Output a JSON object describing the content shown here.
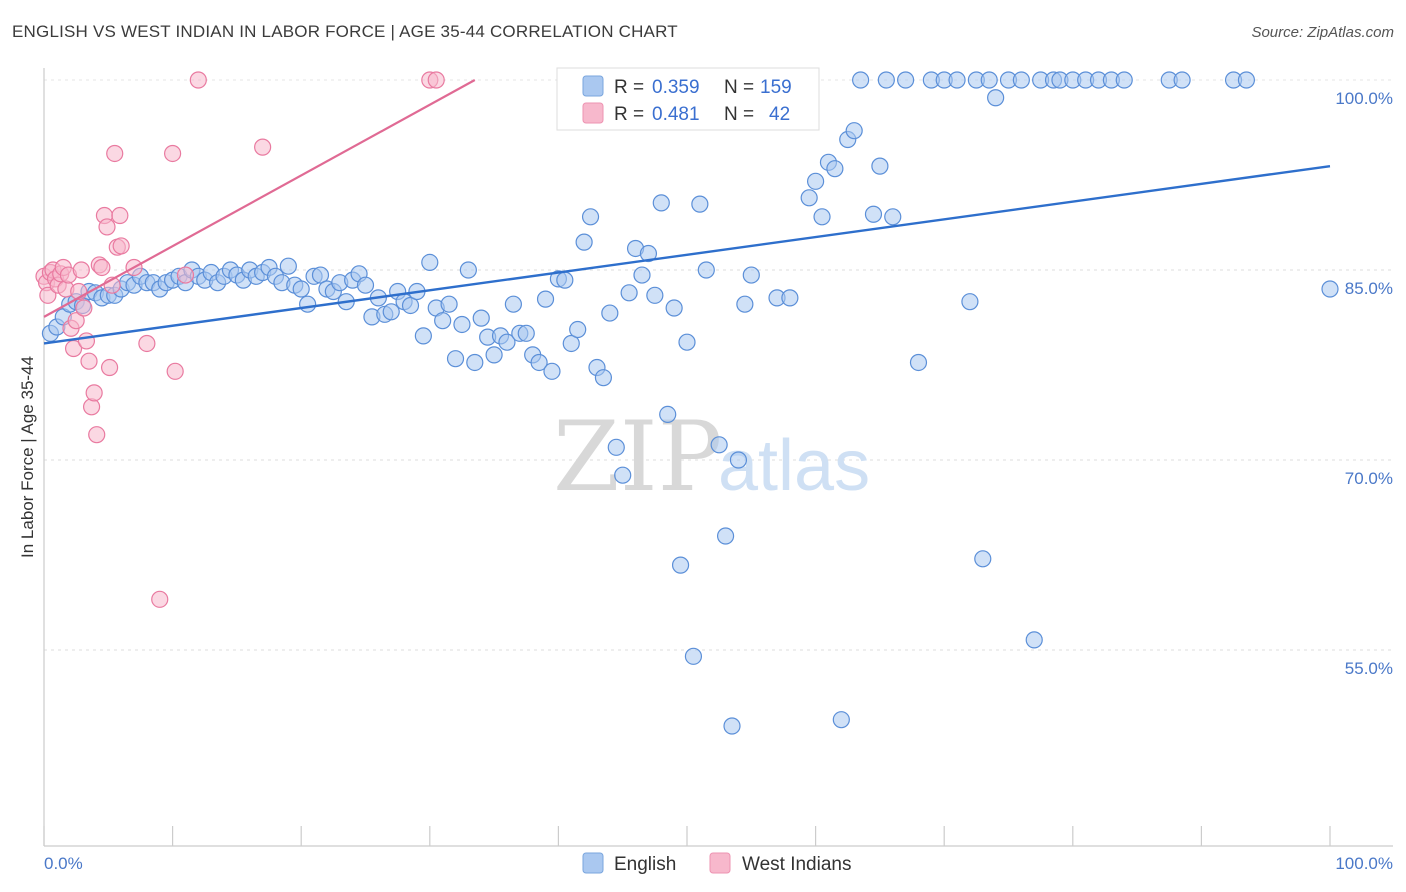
{
  "header": {
    "title": "ENGLISH VS WEST INDIAN IN LABOR FORCE | AGE 35-44 CORRELATION CHART",
    "source": "Source: ZipAtlas.com"
  },
  "watermark": {
    "zip": "ZIP",
    "atlas": "atlas"
  },
  "legend": {
    "rows": [
      {
        "r_label": "R =",
        "r_value": "0.359",
        "n_label": "N =",
        "n_value": "159",
        "color": "#aac8f0"
      },
      {
        "r_label": "R =",
        "r_value": "0.481",
        "n_label": "N =",
        "n_value": "42",
        "color": "#f7b8cc"
      }
    ]
  },
  "bottom_legend": [
    {
      "label": "English",
      "color": "#aac8f0"
    },
    {
      "label": "West Indians",
      "color": "#f7b8cc"
    }
  ],
  "chart_data": {
    "type": "scatter",
    "title": "ENGLISH VS WEST INDIAN IN LABOR FORCE | AGE 35-44 CORRELATION CHART",
    "xlabel": "",
    "ylabel": "In Labor Force | Age 35-44",
    "xlim": [
      0,
      100
    ],
    "ylim": [
      40,
      101.5
    ],
    "x_tick_labels": [
      "0.0%",
      "100.0%"
    ],
    "y_ticks": [
      55,
      70,
      85,
      100
    ],
    "y_tick_labels": [
      "55.0%",
      "70.0%",
      "85.0%",
      "100.0%"
    ],
    "grid": true,
    "legend_position": "top-center",
    "colors": {
      "english": "#5b8fd8",
      "english_fill": "#aac8f0",
      "west_indians": "#e97aa0",
      "west_indians_fill": "#f7b8cc",
      "english_line": "#2e6fcc",
      "west_indians_line": "#e06a94"
    },
    "series": [
      {
        "name": "English",
        "trend": {
          "x": [
            0,
            100
          ],
          "y": [
            79.2,
            93.2
          ]
        },
        "points": [
          [
            0.5,
            80.0
          ],
          [
            1.0,
            80.5
          ],
          [
            1.5,
            81.3
          ],
          [
            2.0,
            82.3
          ],
          [
            2.5,
            82.5
          ],
          [
            3.0,
            82.2
          ],
          [
            3.5,
            83.3
          ],
          [
            4.0,
            83.2
          ],
          [
            4.5,
            82.8
          ],
          [
            5.0,
            83.0
          ],
          [
            5.5,
            83.0
          ],
          [
            6.0,
            83.5
          ],
          [
            6.5,
            84.0
          ],
          [
            7.0,
            83.8
          ],
          [
            7.5,
            84.5
          ],
          [
            8.0,
            84.0
          ],
          [
            8.5,
            84.0
          ],
          [
            9.0,
            83.5
          ],
          [
            9.5,
            84.0
          ],
          [
            10.0,
            84.2
          ],
          [
            10.5,
            84.5
          ],
          [
            11.0,
            84.0
          ],
          [
            11.5,
            85.0
          ],
          [
            12.0,
            84.5
          ],
          [
            12.5,
            84.2
          ],
          [
            13.0,
            84.8
          ],
          [
            13.5,
            84.0
          ],
          [
            14.0,
            84.5
          ],
          [
            14.5,
            85.0
          ],
          [
            15.0,
            84.6
          ],
          [
            15.5,
            84.2
          ],
          [
            16.0,
            85.0
          ],
          [
            16.5,
            84.5
          ],
          [
            17.0,
            84.8
          ],
          [
            17.5,
            85.2
          ],
          [
            18.0,
            84.5
          ],
          [
            18.5,
            84.0
          ],
          [
            19.0,
            85.3
          ],
          [
            19.5,
            83.8
          ],
          [
            20.0,
            83.5
          ],
          [
            20.5,
            82.3
          ],
          [
            21.0,
            84.5
          ],
          [
            21.5,
            84.6
          ],
          [
            22.0,
            83.5
          ],
          [
            22.5,
            83.3
          ],
          [
            23.0,
            84.0
          ],
          [
            23.5,
            82.5
          ],
          [
            24.0,
            84.2
          ],
          [
            24.5,
            84.7
          ],
          [
            25.0,
            83.8
          ],
          [
            25.5,
            81.3
          ],
          [
            26.0,
            82.8
          ],
          [
            26.5,
            81.5
          ],
          [
            27.0,
            81.7
          ],
          [
            27.5,
            83.3
          ],
          [
            28.0,
            82.5
          ],
          [
            28.5,
            82.2
          ],
          [
            29.0,
            83.3
          ],
          [
            29.5,
            79.8
          ],
          [
            30.0,
            85.6
          ],
          [
            30.5,
            82.0
          ],
          [
            31.0,
            81.0
          ],
          [
            31.5,
            82.3
          ],
          [
            32.0,
            78.0
          ],
          [
            32.5,
            80.7
          ],
          [
            33.0,
            85.0
          ],
          [
            33.5,
            77.7
          ],
          [
            34.0,
            81.2
          ],
          [
            34.5,
            79.7
          ],
          [
            35.0,
            78.3
          ],
          [
            35.5,
            79.8
          ],
          [
            36.0,
            79.3
          ],
          [
            36.5,
            82.3
          ],
          [
            37.0,
            80.0
          ],
          [
            37.5,
            80.0
          ],
          [
            38.0,
            78.3
          ],
          [
            38.5,
            77.7
          ],
          [
            39.0,
            82.7
          ],
          [
            39.5,
            77.0
          ],
          [
            40.0,
            84.3
          ],
          [
            40.5,
            84.2
          ],
          [
            41.0,
            79.2
          ],
          [
            41.5,
            80.3
          ],
          [
            42.0,
            87.2
          ],
          [
            42.5,
            89.2
          ],
          [
            43.0,
            77.3
          ],
          [
            43.5,
            76.5
          ],
          [
            44.0,
            81.6
          ],
          [
            44.5,
            71.0
          ],
          [
            45.0,
            68.8
          ],
          [
            45.5,
            83.2
          ],
          [
            46.0,
            86.7
          ],
          [
            46.5,
            84.6
          ],
          [
            47.0,
            86.3
          ],
          [
            47.5,
            83.0
          ],
          [
            48.0,
            90.3
          ],
          [
            48.5,
            73.6
          ],
          [
            49.0,
            82.0
          ],
          [
            49.5,
            61.7
          ],
          [
            50.0,
            79.3
          ],
          [
            50.5,
            54.5
          ],
          [
            51.0,
            90.2
          ],
          [
            51.5,
            85.0
          ],
          [
            52.0,
            99.0
          ],
          [
            52.5,
            71.2
          ],
          [
            53.0,
            64.0
          ],
          [
            53.5,
            49.0
          ],
          [
            54.0,
            70.0
          ],
          [
            54.5,
            82.3
          ],
          [
            55.0,
            84.6
          ],
          [
            55.5,
            99.5
          ],
          [
            56.0,
            97.5
          ],
          [
            57.0,
            82.8
          ],
          [
            57.5,
            100.0
          ],
          [
            58.0,
            82.8
          ],
          [
            58.5,
            100.0
          ],
          [
            59.0,
            98.3
          ],
          [
            59.5,
            90.7
          ],
          [
            60.0,
            92.0
          ],
          [
            60.5,
            89.2
          ],
          [
            61.0,
            93.5
          ],
          [
            61.5,
            93.0
          ],
          [
            62.0,
            49.5
          ],
          [
            62.5,
            95.3
          ],
          [
            63.0,
            96.0
          ],
          [
            63.5,
            100.0
          ],
          [
            64.5,
            89.4
          ],
          [
            65.0,
            93.2
          ],
          [
            65.5,
            100.0
          ],
          [
            66.0,
            89.2
          ],
          [
            67.0,
            100.0
          ],
          [
            68.0,
            77.7
          ],
          [
            69.0,
            100.0
          ],
          [
            70.0,
            100.0
          ],
          [
            71.0,
            100.0
          ],
          [
            72.0,
            82.5
          ],
          [
            72.5,
            100.0
          ],
          [
            73.0,
            62.2
          ],
          [
            73.5,
            100.0
          ],
          [
            74.0,
            98.6
          ],
          [
            75.0,
            100.0
          ],
          [
            76.0,
            100.0
          ],
          [
            77.0,
            55.8
          ],
          [
            77.5,
            100.0
          ],
          [
            78.5,
            100.0
          ],
          [
            79.0,
            100.0
          ],
          [
            80.0,
            100.0
          ],
          [
            81.0,
            100.0
          ],
          [
            82.0,
            100.0
          ],
          [
            83.0,
            100.0
          ],
          [
            84.0,
            100.0
          ],
          [
            87.5,
            100.0
          ],
          [
            88.5,
            100.0
          ],
          [
            92.5,
            100.0
          ],
          [
            93.5,
            100.0
          ],
          [
            100.0,
            83.5
          ]
        ]
      },
      {
        "name": "West Indians",
        "trend": {
          "x": [
            0,
            33.5
          ],
          "y": [
            81.3,
            100.0
          ]
        },
        "points": [
          [
            0.0,
            84.5
          ],
          [
            0.2,
            84.0
          ],
          [
            0.3,
            83.0
          ],
          [
            0.5,
            84.8
          ],
          [
            0.7,
            85.0
          ],
          [
            0.9,
            84.3
          ],
          [
            1.1,
            83.8
          ],
          [
            1.3,
            84.7
          ],
          [
            1.5,
            85.2
          ],
          [
            1.7,
            83.5
          ],
          [
            1.9,
            84.6
          ],
          [
            2.1,
            80.4
          ],
          [
            2.3,
            78.8
          ],
          [
            2.5,
            81.0
          ],
          [
            2.7,
            83.3
          ],
          [
            2.9,
            85.0
          ],
          [
            3.1,
            82.0
          ],
          [
            3.3,
            79.4
          ],
          [
            3.5,
            77.8
          ],
          [
            3.7,
            74.2
          ],
          [
            3.9,
            75.3
          ],
          [
            4.1,
            72.0
          ],
          [
            4.3,
            85.4
          ],
          [
            4.5,
            85.2
          ],
          [
            4.7,
            89.3
          ],
          [
            4.9,
            88.4
          ],
          [
            5.1,
            77.3
          ],
          [
            5.3,
            83.8
          ],
          [
            5.5,
            94.2
          ],
          [
            5.7,
            86.8
          ],
          [
            5.9,
            89.3
          ],
          [
            6.0,
            86.9
          ],
          [
            7.0,
            85.2
          ],
          [
            8.0,
            79.2
          ],
          [
            9.0,
            59.0
          ],
          [
            10.0,
            94.2
          ],
          [
            10.2,
            77.0
          ],
          [
            11.0,
            84.6
          ],
          [
            12.0,
            100.0
          ],
          [
            17.0,
            94.7
          ],
          [
            30.0,
            100.0
          ],
          [
            30.5,
            100.0
          ]
        ]
      }
    ]
  }
}
